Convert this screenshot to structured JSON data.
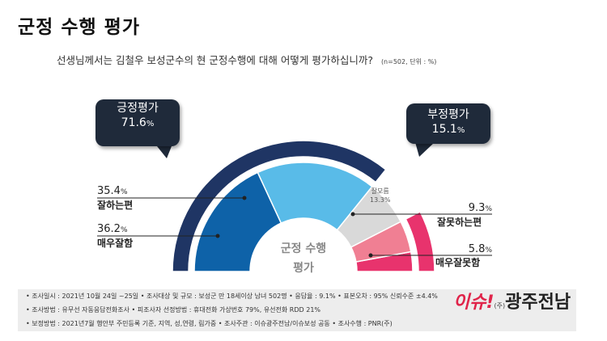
{
  "title": "군정 수행 평가",
  "question": "선생님께서는 김철우 보성군수의 현 군정수행에 대해 어떻게 평가하십니까?",
  "question_note": "(n=502, 단위 : %)",
  "center_label_line1": "군정 수행",
  "center_label_line2": "평가",
  "positive": {
    "label": "긍정평가",
    "value": "71.6",
    "unit": "%"
  },
  "negative": {
    "label": "부정평가",
    "value": "15.1",
    "unit": "%"
  },
  "colors": {
    "positive_outer": "#1f3564",
    "negative_outer": "#e8336d",
    "very_good": "#0e62a8",
    "somewhat_good": "#59bbe8",
    "unsure": "#d9d9d9",
    "somewhat_bad": "#f07f93",
    "bubble": "#1f2a3a"
  },
  "chart_data": {
    "type": "pie",
    "title": "군정 수행 평가",
    "unit": "%",
    "categories": [
      "매우잘함",
      "잘하는편",
      "잘모름",
      "잘못하는편",
      "매우잘못함"
    ],
    "values": [
      36.2,
      35.4,
      13.3,
      9.3,
      5.8
    ],
    "groups": [
      {
        "name": "긍정평가",
        "value": 71.6
      },
      {
        "name": "부정평가",
        "value": 15.1
      }
    ]
  },
  "labels": {
    "somewhat_good": {
      "value": "35.4",
      "unit": "%",
      "name": "잘하는편"
    },
    "very_good": {
      "value": "36.2",
      "unit": "%",
      "name": "매우잘함"
    },
    "unsure": {
      "name": "잘모름",
      "value": "13.3%"
    },
    "somewhat_bad": {
      "value": "9.3",
      "unit": "%",
      "name": "잘못하는편"
    },
    "very_bad": {
      "value": "5.8",
      "unit": "%",
      "name": "매우잘못함"
    }
  },
  "footer": {
    "line1": "• 조사일시 : 2021년 10월 24일 ~25일    • 조사대상 및 규모 : 보성군 만 18세이상 남녀 502명    • 응답율 : 9.1%    • 표본오차 : 95% 신뢰수준 ±4.4%",
    "line2": "• 조사방법 : 유무선 자동응답전화조사    • 피조사자 선정방법 : 휴대전화 가상번호 79%, 유선전화 RDD 21%",
    "line3": "• 보정방법 : 2021년7월 행안부 주민등록 기준, 지역, 성,연령, 림가중    • 조사주관 : 이슈광주전남/이슈보성 공동    • 조사수행 : PNR(주)"
  },
  "logo": {
    "part1": "이슈!",
    "part2": "광주전남",
    "small": "(주)"
  }
}
